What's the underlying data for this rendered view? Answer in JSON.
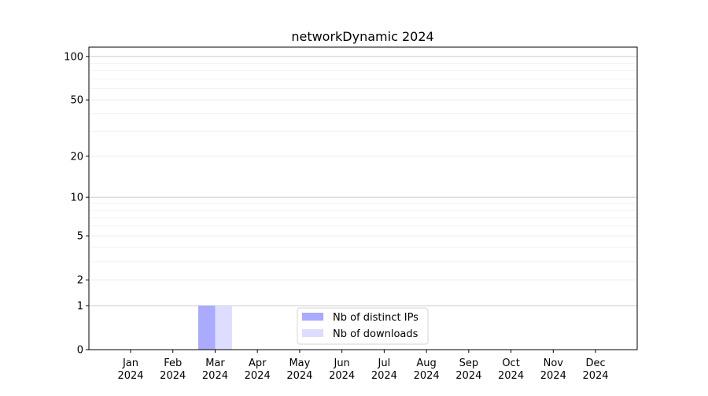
{
  "chart_data": {
    "type": "bar",
    "title": "networkDynamic 2024",
    "xlabel": "",
    "ylabel": "",
    "yscale": "log(1+y)",
    "ylim": [
      0,
      116
    ],
    "grid": true,
    "legend_position": "lower-center",
    "categories": [
      "Jan\n2024",
      "Feb\n2024",
      "Mar\n2024",
      "Apr\n2024",
      "May\n2024",
      "Jun\n2024",
      "Jul\n2024",
      "Aug\n2024",
      "Sep\n2024",
      "Oct\n2024",
      "Nov\n2024",
      "Dec\n2024"
    ],
    "y_ticks": [
      0,
      1,
      2,
      5,
      10,
      20,
      50,
      100
    ],
    "series": [
      {
        "name": "Nb of distinct IPs",
        "color": "#aaaaff",
        "values": [
          0,
          0,
          1,
          0,
          0,
          0,
          0,
          0,
          0,
          0,
          0,
          0
        ]
      },
      {
        "name": "Nb of downloads",
        "color": "#ddddff",
        "values": [
          0,
          0,
          1,
          0,
          0,
          0,
          0,
          0,
          0,
          0,
          0,
          0
        ]
      }
    ]
  }
}
